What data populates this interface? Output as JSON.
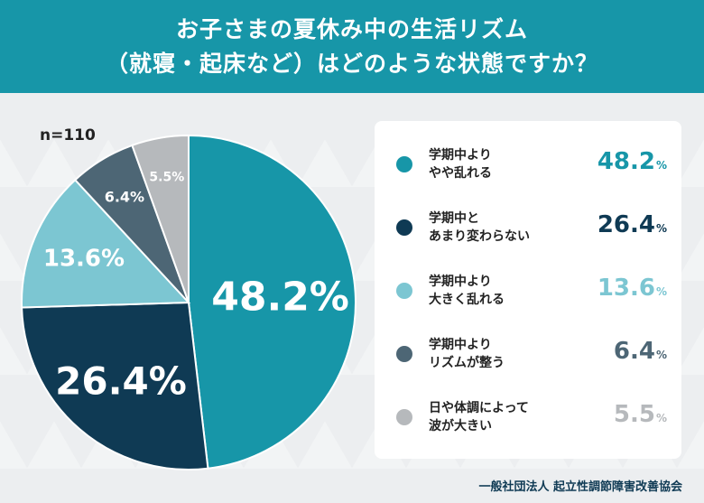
{
  "header": {
    "title_line1": "お子さまの夏休み中の生活リズム",
    "title_line2": "（就寝・起床など）はどのような状態ですか？"
  },
  "sample_size": "n=110",
  "chart_data": {
    "type": "pie",
    "title": "お子さまの夏休み中の生活リズム（就寝・起床など）はどのような状態ですか？",
    "sample": "n=110",
    "slices": [
      {
        "label_lines": [
          "学期中より",
          "やや乱れる"
        ],
        "value": 48.2,
        "display": "48.2",
        "color": "#1796a8"
      },
      {
        "label_lines": [
          "学期中と",
          "あまり変わらない"
        ],
        "value": 26.4,
        "display": "26.4",
        "color": "#0f3a54"
      },
      {
        "label_lines": [
          "学期中より",
          "大きく乱れる"
        ],
        "value": 13.6,
        "display": "13.6",
        "color": "#7cc6d2"
      },
      {
        "label_lines": [
          "学期中より",
          "リズムが整う"
        ],
        "value": 6.4,
        "display": "6.4",
        "color": "#4d6675"
      },
      {
        "label_lines": [
          "日や体調によって",
          "波が大きい"
        ],
        "value": 5.5,
        "display": "5.5",
        "color": "#b6b9bc"
      }
    ],
    "unit": "%"
  },
  "footer": {
    "source": "一般社団法人 起立性調節障害改善協会"
  }
}
